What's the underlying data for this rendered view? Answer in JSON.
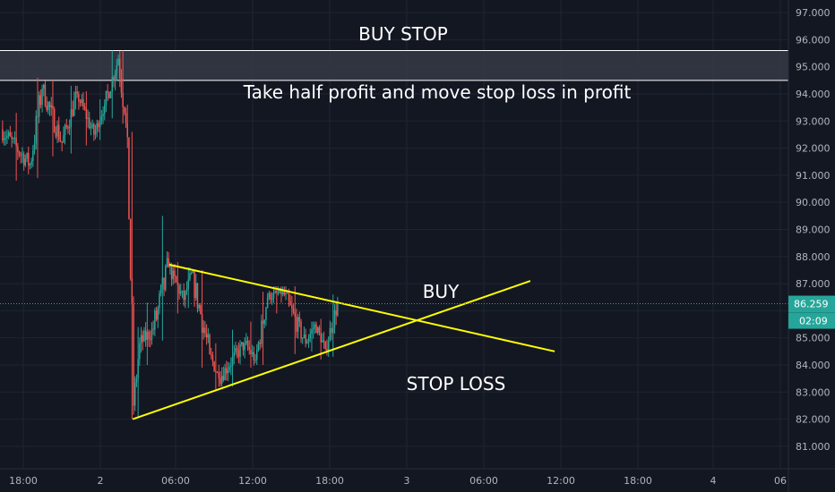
{
  "colors": {
    "background": "#131722",
    "grid": "#1f2433",
    "axis_text": "#b2b5be",
    "up_candle": "#26a69a",
    "down_candle": "#ef5350",
    "trendline": "#ffff00",
    "zone_fill": "#363a45",
    "zone_border": "#ffffff",
    "price_line": "#26a69a",
    "price_badge": "#26a69a",
    "text": "#ffffff"
  },
  "chart_data": {
    "type": "candlestick",
    "title": "",
    "grid": true,
    "y_axis_position": "right",
    "ylim": [
      80.6,
      97.3
    ],
    "y_ticks": [
      "81.000",
      "82.000",
      "83.000",
      "84.000",
      "85.000",
      "86.000",
      "87.000",
      "88.000",
      "89.000",
      "90.000",
      "91.000",
      "92.000",
      "93.000",
      "94.000",
      "95.000",
      "96.000",
      "97.000"
    ],
    "x_ticks": [
      "18:00",
      "2",
      "06:00",
      "12:00",
      "18:00",
      "3",
      "06:00",
      "12:00",
      "18:00",
      "4",
      "06"
    ],
    "current_price": 86.259,
    "countdown": "02:09",
    "buy_stop_zone": {
      "low": 94.5,
      "high": 95.6
    },
    "annotations": {
      "buy_stop": "BUY STOP",
      "take_profit_note": "Take half profit and move stop loss in profit",
      "buy": "BUY",
      "stop_loss": "STOP LOSS"
    },
    "trendlines": [
      {
        "name": "",
        "from": {
          "bar": 110,
          "price": 87.7
        },
        "to": {
          "bar": 363,
          "price": 84.5
        }
      },
      {
        "name": "",
        "from": {
          "bar": 86,
          "price": 82.0
        },
        "to": {
          "bar": 347,
          "price": 87.1
        }
      }
    ],
    "candle_segments": [
      {
        "from_bar": 0,
        "to_bar": 19,
        "start": 92.7,
        "end": 91.4,
        "low": 90.8,
        "high": 93.3
      },
      {
        "from_bar": 19,
        "to_bar": 27,
        "start": 91.4,
        "end": 94.2,
        "low": 90.9,
        "high": 94.6
      },
      {
        "from_bar": 27,
        "to_bar": 40,
        "start": 94.2,
        "end": 92.2,
        "low": 91.7,
        "high": 94.5
      },
      {
        "from_bar": 40,
        "to_bar": 50,
        "start": 92.2,
        "end": 94.0,
        "low": 91.8,
        "high": 94.3
      },
      {
        "from_bar": 50,
        "to_bar": 61,
        "start": 94.0,
        "end": 92.5,
        "low": 92.1,
        "high": 94.1
      },
      {
        "from_bar": 61,
        "to_bar": 68,
        "start": 92.5,
        "end": 93.6,
        "low": 92.3,
        "high": 93.8
      },
      {
        "from_bar": 68,
        "to_bar": 77,
        "start": 93.6,
        "end": 95.3,
        "low": 93.1,
        "high": 95.6
      },
      {
        "from_bar": 77,
        "to_bar": 81,
        "start": 95.3,
        "end": 93.3,
        "low": 92.9,
        "high": 95.6
      },
      {
        "from_bar": 81,
        "to_bar": 83,
        "start": 93.3,
        "end": 92.4,
        "low": 92.0,
        "high": 93.6
      },
      {
        "from_bar": 83,
        "to_bar": 87,
        "start": 92.4,
        "end": 82.5,
        "low": 82.0,
        "high": 92.6
      },
      {
        "from_bar": 87,
        "to_bar": 91,
        "start": 82.5,
        "end": 84.8,
        "low": 82.1,
        "high": 85.4
      },
      {
        "from_bar": 91,
        "to_bar": 100,
        "start": 84.8,
        "end": 85.3,
        "low": 84.0,
        "high": 86.3
      },
      {
        "from_bar": 100,
        "to_bar": 110,
        "start": 85.3,
        "end": 87.6,
        "low": 84.9,
        "high": 89.5
      },
      {
        "from_bar": 110,
        "to_bar": 120,
        "start": 87.6,
        "end": 86.4,
        "low": 85.9,
        "high": 87.8
      },
      {
        "from_bar": 120,
        "to_bar": 125,
        "start": 86.4,
        "end": 87.4,
        "low": 86.1,
        "high": 87.6
      },
      {
        "from_bar": 125,
        "to_bar": 137,
        "start": 87.4,
        "end": 84.4,
        "low": 83.9,
        "high": 87.5
      },
      {
        "from_bar": 137,
        "to_bar": 143,
        "start": 84.4,
        "end": 83.5,
        "low": 83.1,
        "high": 84.8
      },
      {
        "from_bar": 143,
        "to_bar": 160,
        "start": 83.5,
        "end": 84.8,
        "low": 83.2,
        "high": 85.3
      },
      {
        "from_bar": 160,
        "to_bar": 167,
        "start": 84.8,
        "end": 84.2,
        "low": 83.9,
        "high": 85.6
      },
      {
        "from_bar": 167,
        "to_bar": 175,
        "start": 84.2,
        "end": 86.5,
        "low": 84.0,
        "high": 86.7
      },
      {
        "from_bar": 175,
        "to_bar": 185,
        "start": 86.5,
        "end": 86.7,
        "low": 85.9,
        "high": 86.9
      },
      {
        "from_bar": 185,
        "to_bar": 200,
        "start": 86.7,
        "end": 84.8,
        "low": 84.4,
        "high": 86.9
      },
      {
        "from_bar": 200,
        "to_bar": 206,
        "start": 84.8,
        "end": 85.5,
        "low": 84.5,
        "high": 85.6
      },
      {
        "from_bar": 206,
        "to_bar": 213,
        "start": 85.5,
        "end": 84.6,
        "low": 84.2,
        "high": 85.7
      },
      {
        "from_bar": 213,
        "to_bar": 221,
        "start": 84.6,
        "end": 86.259,
        "low": 84.3,
        "high": 86.6
      }
    ]
  }
}
